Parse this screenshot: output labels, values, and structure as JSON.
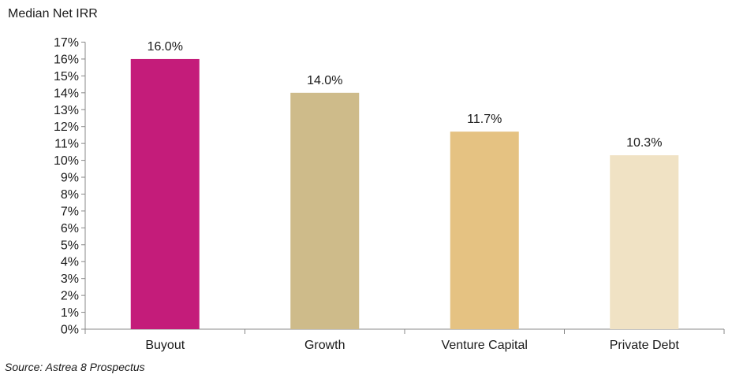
{
  "chart_data": {
    "type": "bar",
    "title": "Median Net IRR",
    "categories": [
      "Buyout",
      "Growth",
      "Venture Capital",
      "Private Debt"
    ],
    "values": [
      16.0,
      14.0,
      11.7,
      10.3
    ],
    "data_labels": [
      "16.0%",
      "14.0%",
      "11.7%",
      "10.3%"
    ],
    "colors": [
      "#c41c7a",
      "#cebb8a",
      "#e5c282",
      "#f0e2c4"
    ],
    "ylim": [
      0,
      17
    ],
    "ytick_step": 1,
    "ytick_suffix": "%",
    "yticks": [
      "0%",
      "1%",
      "2%",
      "3%",
      "4%",
      "5%",
      "6%",
      "7%",
      "8%",
      "9%",
      "10%",
      "11%",
      "12%",
      "13%",
      "14%",
      "15%",
      "16%",
      "17%"
    ],
    "xlabel": "",
    "ylabel": "",
    "grid": false,
    "legend": "none"
  },
  "source": "Source: Astrea 8 Prospectus"
}
